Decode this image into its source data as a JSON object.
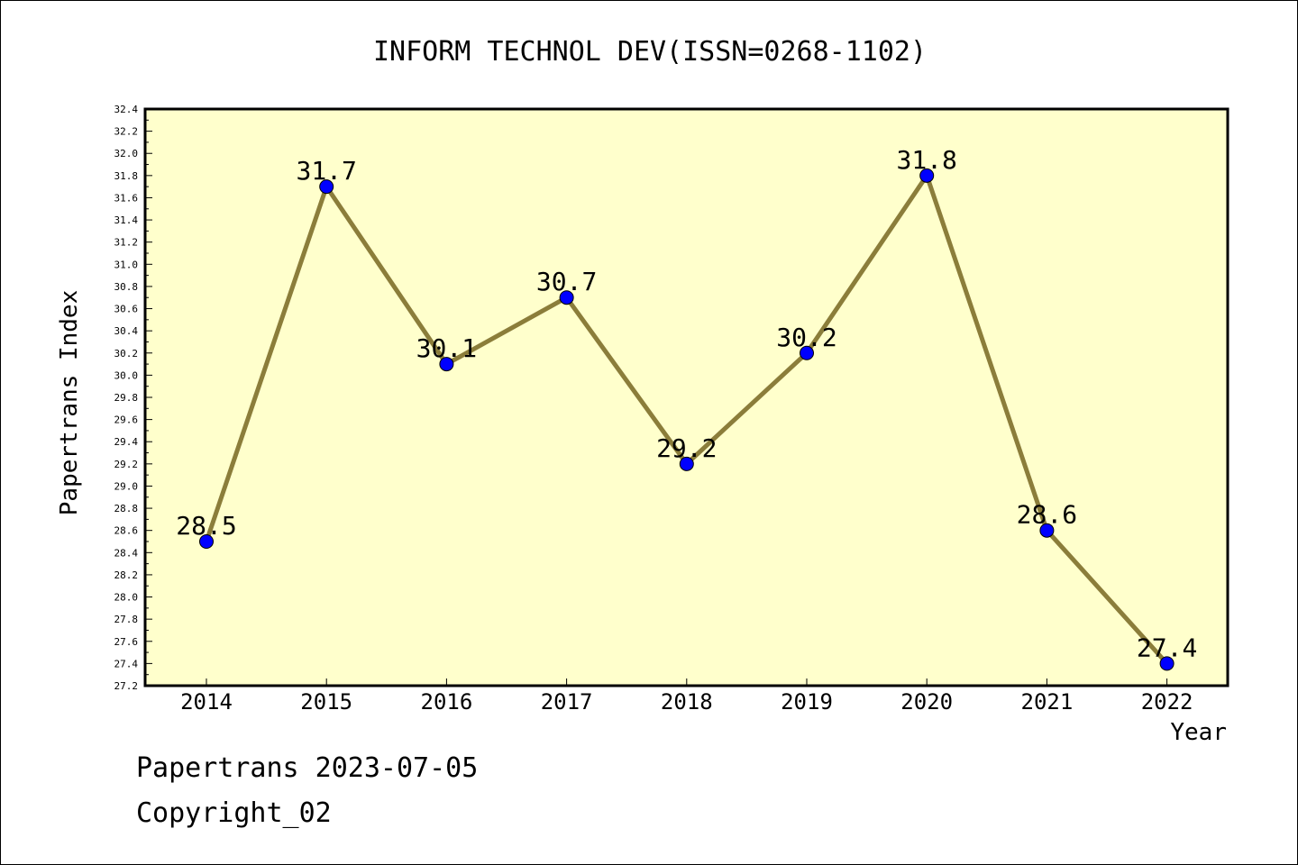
{
  "chart_data": {
    "type": "line",
    "title": "INFORM TECHNOL DEV(ISSN=0268-1102)",
    "xlabel": "Year",
    "ylabel": "Papertrans Index",
    "categories": [
      "2014",
      "2015",
      "2016",
      "2017",
      "2018",
      "2019",
      "2020",
      "2021",
      "2022"
    ],
    "values": [
      28.5,
      31.7,
      30.1,
      30.7,
      29.2,
      30.2,
      31.8,
      28.6,
      27.4
    ],
    "data_labels": [
      "28.5",
      "31.7",
      "30.1",
      "30.7",
      "29.2",
      "30.2",
      "31.8",
      "28.6",
      "27.4"
    ],
    "ylim": [
      27.2,
      32.4
    ],
    "ytick_step": 0.2,
    "grid": false,
    "colors": {
      "plot_background": "#ffffcc",
      "line": "#8b7d3a",
      "marker": "#0000ff"
    }
  },
  "footer": {
    "date_line": "Papertrans 2023-07-05",
    "copyright_line": "Copyright_02"
  }
}
